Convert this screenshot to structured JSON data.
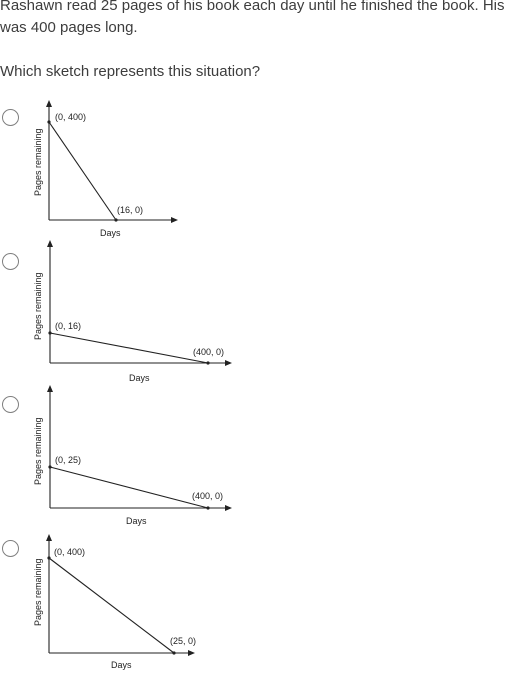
{
  "question": {
    "line1": "Rashawn read 25 pages of his book each day until he finished the book. His",
    "line2": "was 400 pages long.",
    "prompt": "Which sketch represents this situation?"
  },
  "options": [
    {
      "ylabel": "Pages remaining",
      "xlabel": "Days",
      "start_label": "(0, 400)",
      "end_label": "(16, 0)"
    },
    {
      "ylabel": "Pages remaining",
      "xlabel": "Days",
      "start_label": "(0, 16)",
      "end_label": "(400, 0)"
    },
    {
      "ylabel": "Pages remaining",
      "xlabel": "Days",
      "start_label": "(0, 25)",
      "end_label": "(400, 0)"
    },
    {
      "ylabel": "Pages remaining",
      "xlabel": "Days",
      "start_label": "(0, 400)",
      "end_label": "(25, 0)"
    }
  ]
}
